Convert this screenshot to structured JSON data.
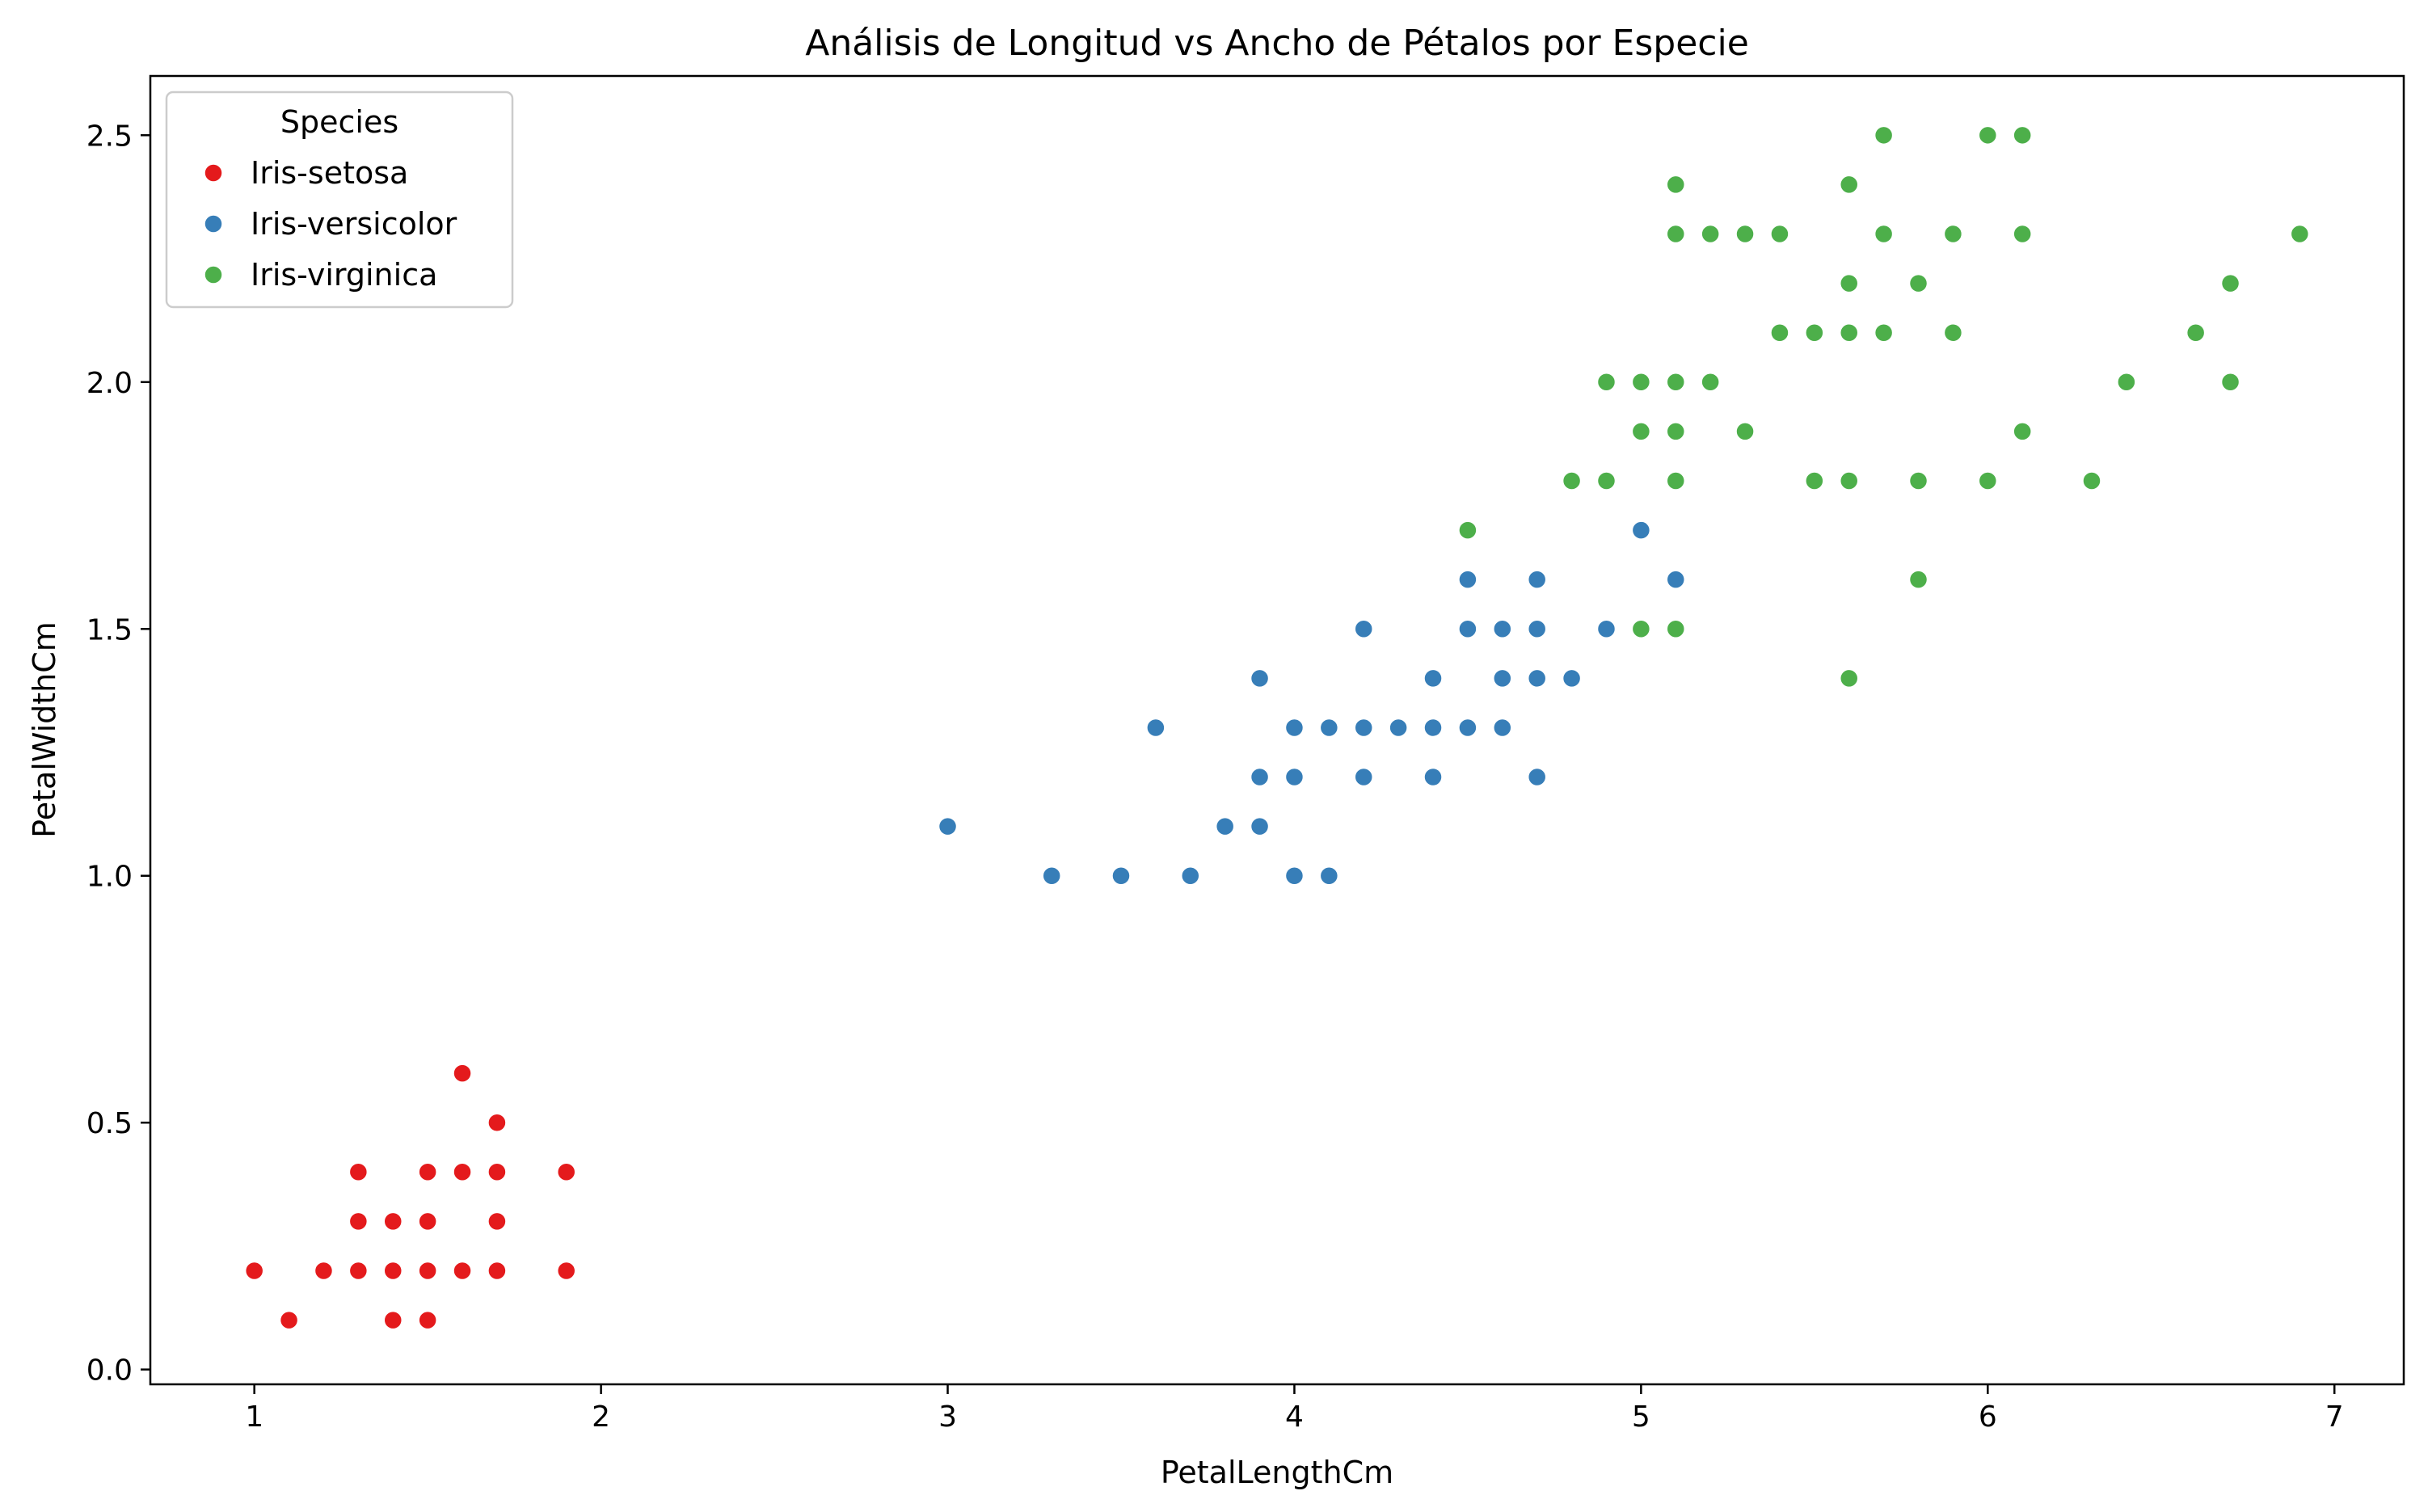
{
  "chart_data": {
    "type": "scatter",
    "title": "Análisis de Longitud vs Ancho de Pétalos por Especie",
    "xlabel": "PetalLengthCm",
    "ylabel": "PetalWidthCm",
    "xlim": [
      0.7,
      7.2
    ],
    "ylim": [
      -0.03,
      2.62
    ],
    "xticks": [
      1,
      2,
      3,
      4,
      5,
      6,
      7
    ],
    "yticks": [
      0.0,
      0.5,
      1.0,
      1.5,
      2.0,
      2.5
    ],
    "grid": false,
    "legend": {
      "title": "Species",
      "placement": "top-left"
    },
    "series": [
      {
        "name": "Iris-setosa",
        "color": "#e41a1c",
        "points": [
          [
            1.0,
            0.2
          ],
          [
            1.1,
            0.1
          ],
          [
            1.2,
            0.2
          ],
          [
            1.3,
            0.2
          ],
          [
            1.3,
            0.3
          ],
          [
            1.3,
            0.4
          ],
          [
            1.4,
            0.1
          ],
          [
            1.4,
            0.2
          ],
          [
            1.4,
            0.3
          ],
          [
            1.5,
            0.1
          ],
          [
            1.5,
            0.2
          ],
          [
            1.5,
            0.3
          ],
          [
            1.5,
            0.4
          ],
          [
            1.6,
            0.2
          ],
          [
            1.6,
            0.4
          ],
          [
            1.6,
            0.6
          ],
          [
            1.7,
            0.2
          ],
          [
            1.7,
            0.3
          ],
          [
            1.7,
            0.4
          ],
          [
            1.7,
            0.5
          ],
          [
            1.9,
            0.2
          ],
          [
            1.9,
            0.4
          ]
        ]
      },
      {
        "name": "Iris-versicolor",
        "color": "#377eb8",
        "points": [
          [
            3.0,
            1.1
          ],
          [
            3.3,
            1.0
          ],
          [
            3.5,
            1.0
          ],
          [
            3.6,
            1.3
          ],
          [
            3.7,
            1.0
          ],
          [
            3.8,
            1.1
          ],
          [
            3.9,
            1.1
          ],
          [
            3.9,
            1.2
          ],
          [
            3.9,
            1.4
          ],
          [
            4.0,
            1.0
          ],
          [
            4.0,
            1.2
          ],
          [
            4.0,
            1.3
          ],
          [
            4.1,
            1.0
          ],
          [
            4.1,
            1.3
          ],
          [
            4.2,
            1.2
          ],
          [
            4.2,
            1.3
          ],
          [
            4.2,
            1.5
          ],
          [
            4.3,
            1.3
          ],
          [
            4.4,
            1.2
          ],
          [
            4.4,
            1.3
          ],
          [
            4.4,
            1.4
          ],
          [
            4.5,
            1.3
          ],
          [
            4.5,
            1.5
          ],
          [
            4.5,
            1.6
          ],
          [
            4.6,
            1.3
          ],
          [
            4.6,
            1.4
          ],
          [
            4.6,
            1.5
          ],
          [
            4.7,
            1.2
          ],
          [
            4.7,
            1.4
          ],
          [
            4.7,
            1.5
          ],
          [
            4.7,
            1.6
          ],
          [
            4.8,
            1.4
          ],
          [
            4.9,
            1.5
          ],
          [
            5.0,
            1.7
          ],
          [
            5.1,
            1.6
          ]
        ]
      },
      {
        "name": "Iris-virginica",
        "color": "#4daf4a",
        "points": [
          [
            4.5,
            1.7
          ],
          [
            4.8,
            1.8
          ],
          [
            4.9,
            1.8
          ],
          [
            4.9,
            2.0
          ],
          [
            5.0,
            1.5
          ],
          [
            5.0,
            1.9
          ],
          [
            5.0,
            2.0
          ],
          [
            5.1,
            1.5
          ],
          [
            5.1,
            1.8
          ],
          [
            5.1,
            1.9
          ],
          [
            5.1,
            2.0
          ],
          [
            5.1,
            2.3
          ],
          [
            5.1,
            2.4
          ],
          [
            5.2,
            2.0
          ],
          [
            5.2,
            2.3
          ],
          [
            5.3,
            1.9
          ],
          [
            5.3,
            2.3
          ],
          [
            5.4,
            2.1
          ],
          [
            5.4,
            2.3
          ],
          [
            5.5,
            1.8
          ],
          [
            5.5,
            2.1
          ],
          [
            5.6,
            1.4
          ],
          [
            5.6,
            1.8
          ],
          [
            5.6,
            2.1
          ],
          [
            5.6,
            2.2
          ],
          [
            5.6,
            2.4
          ],
          [
            5.7,
            2.1
          ],
          [
            5.7,
            2.3
          ],
          [
            5.7,
            2.5
          ],
          [
            5.8,
            1.6
          ],
          [
            5.8,
            1.8
          ],
          [
            5.8,
            2.2
          ],
          [
            5.9,
            2.1
          ],
          [
            5.9,
            2.3
          ],
          [
            6.0,
            1.8
          ],
          [
            6.0,
            2.5
          ],
          [
            6.1,
            1.9
          ],
          [
            6.1,
            2.3
          ],
          [
            6.1,
            2.5
          ],
          [
            6.3,
            1.8
          ],
          [
            6.4,
            2.0
          ],
          [
            6.6,
            2.1
          ],
          [
            6.7,
            2.0
          ],
          [
            6.7,
            2.2
          ],
          [
            6.9,
            2.3
          ]
        ]
      }
    ]
  }
}
